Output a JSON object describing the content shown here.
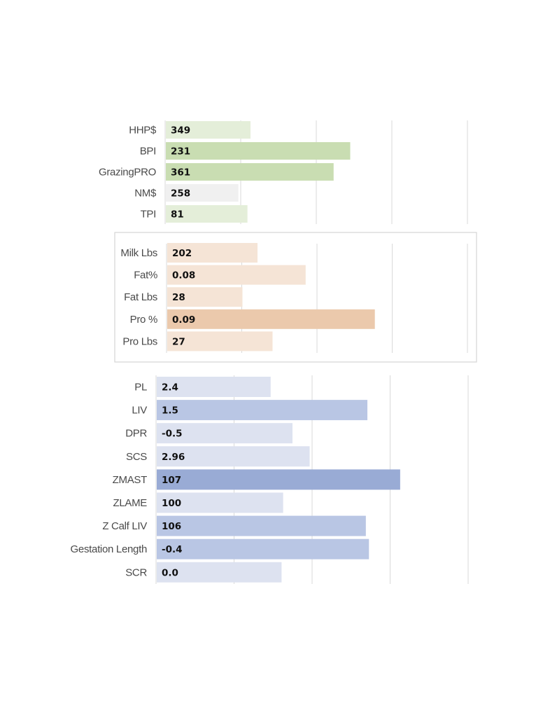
{
  "chart_data": [
    {
      "type": "bar",
      "orientation": "horizontal",
      "categories": [
        "HHP$",
        "BPI",
        "GrazingPRO",
        "NM$",
        "TPI"
      ],
      "values": [
        349,
        231,
        361,
        258,
        81
      ],
      "value_labels": [
        "349",
        "231",
        "361",
        "258",
        "81"
      ],
      "bar_length_fraction": [
        0.28,
        0.61,
        0.555,
        0.24,
        0.27
      ],
      "colors": [
        "#e4eed9",
        "#c9ddb2",
        "#c9ddb2",
        "#f0f0f0",
        "#e4eed9"
      ],
      "grid": true,
      "legend": "none",
      "boxed": false
    },
    {
      "type": "bar",
      "orientation": "horizontal",
      "categories": [
        "Milk Lbs",
        "Fat%",
        "Fat Lbs",
        "Pro %",
        "Pro Lbs"
      ],
      "values": [
        202,
        0.08,
        28,
        0.09,
        27
      ],
      "value_labels": [
        "202",
        "0.08",
        "28",
        "0.09",
        "27"
      ],
      "bar_length_fraction": [
        0.3,
        0.46,
        0.25,
        0.69,
        0.35
      ],
      "colors": [
        "#f5e4d6",
        "#f5e4d6",
        "#f5e4d6",
        "#ebc9ac",
        "#f5e4d6"
      ],
      "grid": true,
      "legend": "none",
      "boxed": true
    },
    {
      "type": "bar",
      "orientation": "horizontal",
      "categories": [
        "PL",
        "LIV",
        "DPR",
        "SCS",
        "ZMAST",
        "ZLAME",
        "Z Calf LIV",
        "Gestation Length",
        "SCR"
      ],
      "values": [
        2.4,
        1.5,
        -0.5,
        2.96,
        107,
        100,
        106,
        -0.4,
        0.0
      ],
      "value_labels": [
        "2.4",
        "1.5",
        "-0.5",
        "2.96",
        "107",
        "100",
        "106",
        "-0.4",
        "0.0"
      ],
      "bar_length_fraction": [
        0.365,
        0.675,
        0.435,
        0.49,
        0.78,
        0.405,
        0.67,
        0.68,
        0.4
      ],
      "colors": [
        "#dde2f0",
        "#b9c6e4",
        "#dde2f0",
        "#dde2f0",
        "#99abd5",
        "#dde2f0",
        "#b9c6e4",
        "#b9c6e4",
        "#dde2f0"
      ],
      "grid": true,
      "legend": "none",
      "boxed": false
    }
  ]
}
